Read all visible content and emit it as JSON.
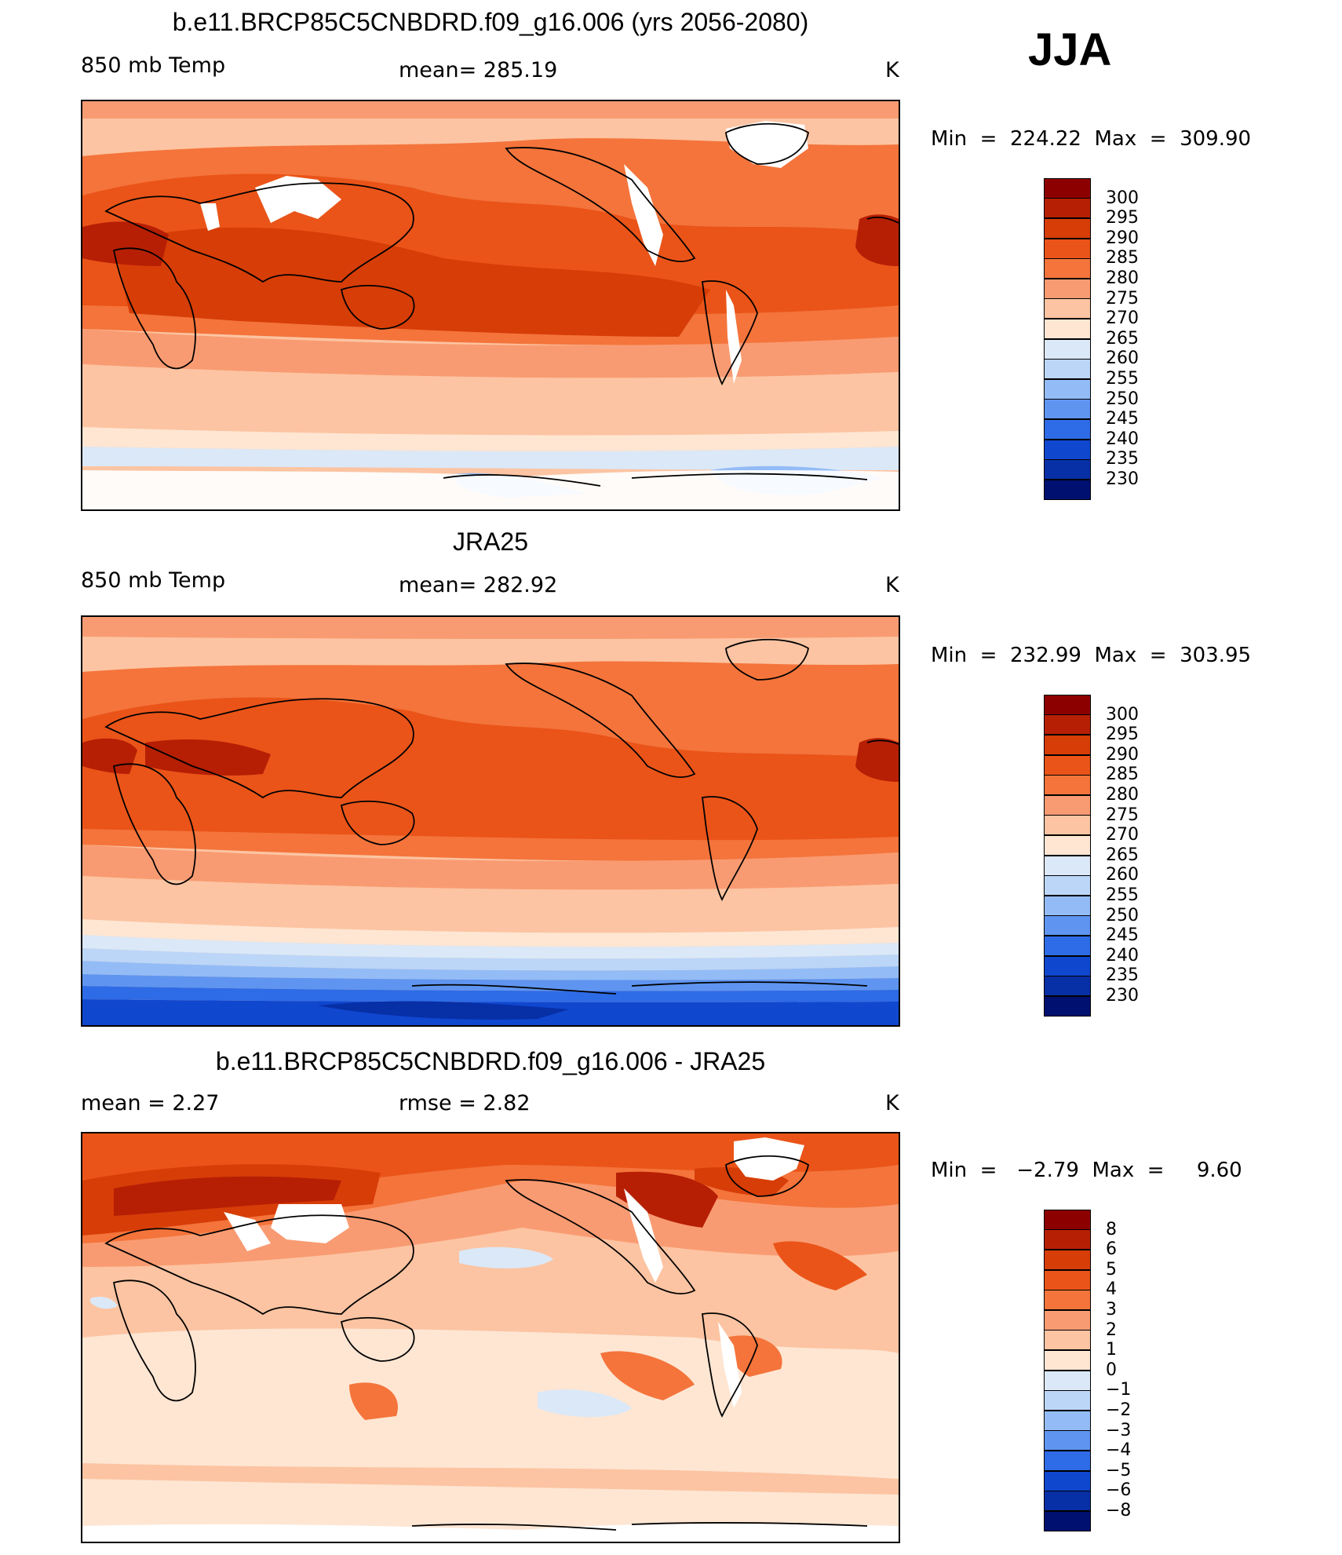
{
  "season": "JJA",
  "panels": [
    {
      "title": "b.e11.BRCP85C5CNBDRD.f09_g16.006 (yrs 2056-2080)",
      "left_label": "850 mb Temp",
      "center_label": "mean=  285.19",
      "units": "K",
      "minmax": "Min  =  224.22  Max  =  309.90",
      "colorbar": {
        "labels": [
          "300",
          "295",
          "290",
          "285",
          "280",
          "275",
          "270",
          "265",
          "260",
          "255",
          "250",
          "245",
          "240",
          "235",
          "230"
        ],
        "colors": [
          "#8c0000",
          "#b61f04",
          "#d73d07",
          "#ea5419",
          "#f4743b",
          "#f99b72",
          "#fcc4a2",
          "#fee6d3",
          "#dbe8f7",
          "#bcd6f8",
          "#93bcf6",
          "#5f95f0",
          "#2e6be6",
          "#1047cf",
          "#072fa6",
          "#001070"
        ]
      }
    },
    {
      "title": "JRA25",
      "left_label": "850 mb Temp",
      "center_label": "mean=  282.92",
      "units": "K",
      "minmax": "Min  =  232.99  Max  =  303.95",
      "colorbar": {
        "labels": [
          "300",
          "295",
          "290",
          "285",
          "280",
          "275",
          "270",
          "265",
          "260",
          "255",
          "250",
          "245",
          "240",
          "235",
          "230"
        ],
        "colors": [
          "#8c0000",
          "#b61f04",
          "#d73d07",
          "#ea5419",
          "#f4743b",
          "#f99b72",
          "#fcc4a2",
          "#fee6d3",
          "#dbe8f7",
          "#bcd6f8",
          "#93bcf6",
          "#5f95f0",
          "#2e6be6",
          "#1047cf",
          "#072fa6",
          "#001070"
        ]
      }
    },
    {
      "title": "b.e11.BRCP85C5CNBDRD.f09_g16.006 - JRA25",
      "left_label": "mean =     2.27",
      "center_label": "rmse =     2.82",
      "units": "K",
      "minmax": "Min  =   −2.79  Max  =     9.60",
      "colorbar": {
        "labels": [
          "8",
          "6",
          "5",
          "4",
          "3",
          "2",
          "1",
          "0",
          "−1",
          "−2",
          "−3",
          "−4",
          "−5",
          "−6",
          "−8"
        ],
        "colors": [
          "#8c0000",
          "#b61f04",
          "#d73d07",
          "#ea5419",
          "#f4743b",
          "#f99b72",
          "#fcc4a2",
          "#fee6d3",
          "#dbe8f7",
          "#bcd6f8",
          "#93bcf6",
          "#5f95f0",
          "#2e6be6",
          "#1047cf",
          "#072fa6",
          "#001070"
        ]
      }
    }
  ]
}
